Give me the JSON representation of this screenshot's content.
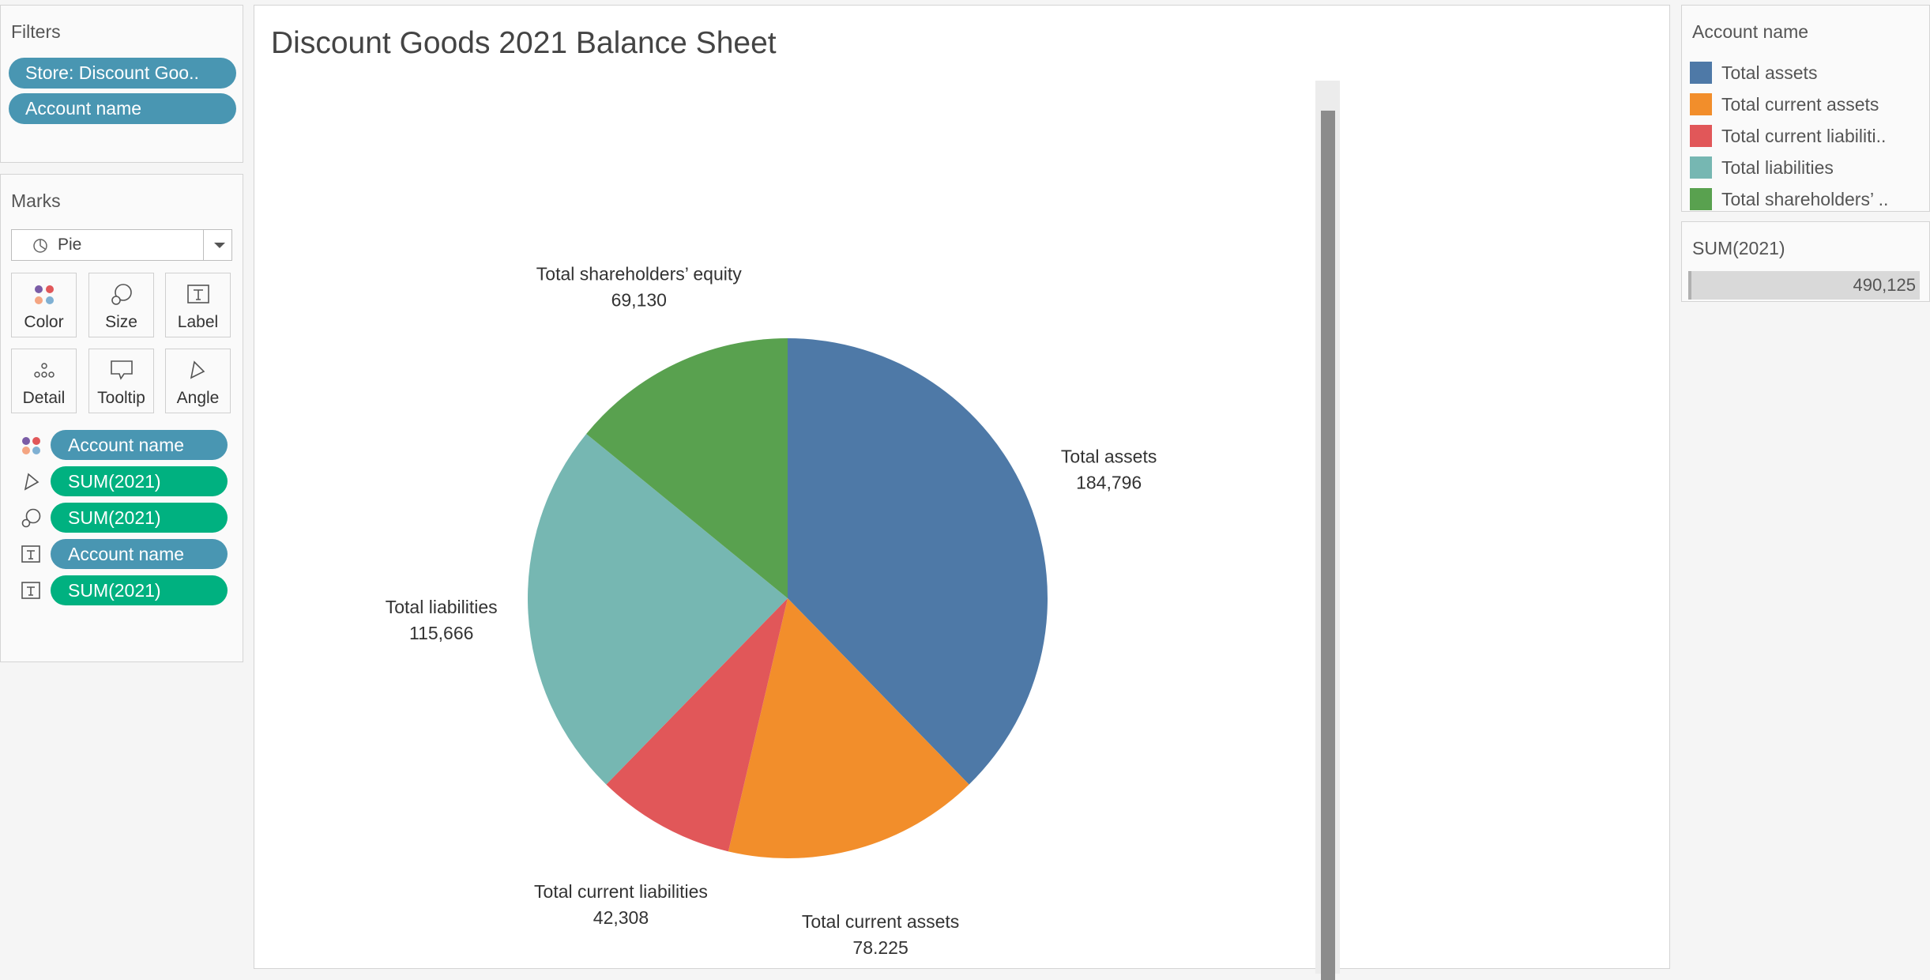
{
  "filters": {
    "title": "Filters",
    "pills": [
      "Store: Discount Goo..",
      "Account name"
    ]
  },
  "marks": {
    "title": "Marks",
    "type": "Pie",
    "buttons": [
      "Color",
      "Size",
      "Label",
      "Detail",
      "Tooltip",
      "Angle"
    ],
    "shelf": [
      {
        "icon": "color-icon",
        "label": "Account name",
        "kind": "dimension"
      },
      {
        "icon": "angle-icon",
        "label": "SUM(2021)",
        "kind": "measure"
      },
      {
        "icon": "size-icon",
        "label": "SUM(2021)",
        "kind": "measure"
      },
      {
        "icon": "label-icon",
        "label": "Account name",
        "kind": "dimension"
      },
      {
        "icon": "label-icon",
        "label": "SUM(2021)",
        "kind": "measure"
      }
    ]
  },
  "legend": {
    "title": "Account name",
    "items": [
      {
        "label": "Total assets",
        "color": "#4e79a7"
      },
      {
        "label": "Total current assets",
        "color": "#f28e2b"
      },
      {
        "label": "Total current liabiliti..",
        "color": "#e15759"
      },
      {
        "label": "Total liabilities",
        "color": "#76b7b2"
      },
      {
        "label": "Total shareholders’ ..",
        "color": "#59a14f"
      }
    ]
  },
  "size_legend": {
    "title": "SUM(2021)",
    "value": "490,125"
  },
  "chart_data": {
    "type": "pie",
    "title": "Discount Goods 2021 Balance Sheet",
    "categories": [
      "Total assets",
      "Total current assets",
      "Total current liabilities",
      "Total liabilities",
      "Total shareholders’ equity"
    ],
    "values": [
      184796,
      78225,
      42308,
      115666,
      69130
    ],
    "value_labels": [
      "184,796",
      "78,225",
      "42,308",
      "115,666",
      "69,130"
    ],
    "colors": [
      "#4e79a7",
      "#f28e2b",
      "#e15759",
      "#76b7b2",
      "#59a14f"
    ]
  }
}
